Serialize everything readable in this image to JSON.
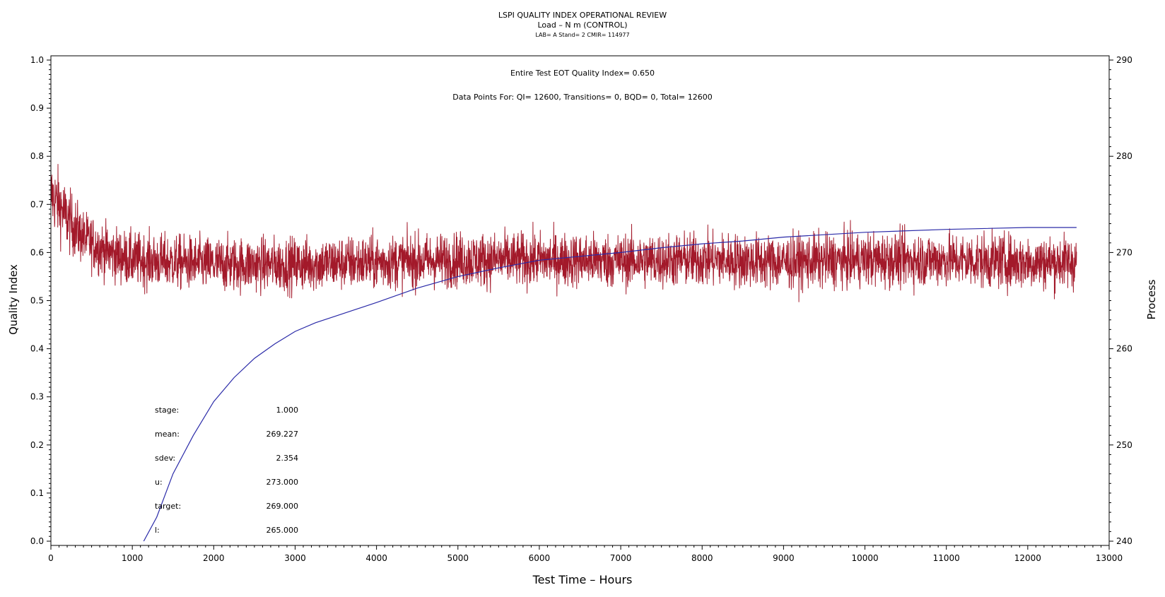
{
  "header": {
    "title": "LSPI QUALITY INDEX OPERATIONAL REVIEW",
    "subtitle": "Load – N m (CONTROL)",
    "meta": "LAB= A Stand= 2 CMIR= 114977"
  },
  "annotations": {
    "eot": "Entire Test EOT Quality Index=   0.650",
    "data_points": "Data Points For: QI= 12600, Transitions=      0, BQD=      0, Total= 12600"
  },
  "stats": [
    {
      "label": "stage:",
      "value": "1.000"
    },
    {
      "label": "mean:",
      "value": "269.227"
    },
    {
      "label": "sdev:",
      "value": "2.354"
    },
    {
      "label": "u:",
      "value": "273.000"
    },
    {
      "label": "target:",
      "value": "269.000"
    },
    {
      "label": "l:",
      "value": "265.000"
    }
  ],
  "colors": {
    "qi_series": "#a3192a",
    "process_series": "#2a2aa8",
    "frame": "#000000"
  },
  "chart_data": {
    "type": "line",
    "xlabel": "Test Time – Hours",
    "ylabel": "Quality Index",
    "y2label": "Process",
    "xlim": [
      0,
      13000
    ],
    "ylim": [
      0.0,
      1.0
    ],
    "y2lim": [
      240,
      290
    ],
    "xticks": [
      "0",
      "1000",
      "2000",
      "3000",
      "4000",
      "5000",
      "6000",
      "7000",
      "8000",
      "9000",
      "10000",
      "11000",
      "12000",
      "13000"
    ],
    "yticks": [
      "0.0",
      "0.1",
      "0.2",
      "0.3",
      "0.4",
      "0.5",
      "0.6",
      "0.7",
      "0.8",
      "0.9",
      "1.0"
    ],
    "y2ticks": [
      "240",
      "250",
      "260",
      "270",
      "280",
      "290"
    ],
    "series": [
      {
        "axis": "left",
        "x": [
          0,
          100,
          200,
          300,
          400,
          500,
          600,
          700,
          800,
          900,
          1000,
          1500,
          2000,
          2500,
          3000,
          3500,
          4000,
          4500,
          5000,
          6000,
          7000,
          8000,
          9000,
          10000,
          11000,
          12000,
          12600
        ],
        "values": [
          0.72,
          0.7,
          0.67,
          0.65,
          0.63,
          0.62,
          0.61,
          0.6,
          0.595,
          0.59,
          0.585,
          0.58,
          0.575,
          0.575,
          0.575,
          0.578,
          0.58,
          0.582,
          0.585,
          0.585,
          0.583,
          0.585,
          0.58,
          0.585,
          0.585,
          0.58,
          0.58
        ],
        "spread": [
          0.07,
          0.07,
          0.065,
          0.06,
          0.055,
          0.055,
          0.055,
          0.055,
          0.055,
          0.055,
          0.055,
          0.055,
          0.055,
          0.055,
          0.055,
          0.055,
          0.055,
          0.055,
          0.055,
          0.055,
          0.055,
          0.055,
          0.055,
          0.055,
          0.055,
          0.055,
          0.055
        ]
      },
      {
        "axis": "right",
        "x": [
          1140,
          1300,
          1500,
          1750,
          2000,
          2250,
          2500,
          2750,
          3000,
          3250,
          3500,
          4000,
          4500,
          5000,
          5500,
          6000,
          6500,
          7000,
          7500,
          8000,
          8500,
          9000,
          10000,
          11000,
          12000,
          12600
        ],
        "values": [
          240.0,
          242.5,
          247.0,
          251.0,
          254.5,
          257.0,
          259.0,
          260.5,
          261.8,
          262.7,
          263.4,
          264.8,
          266.3,
          267.5,
          268.4,
          269.2,
          269.6,
          270.0,
          270.5,
          270.9,
          271.2,
          271.6,
          272.1,
          272.4,
          272.6,
          272.6
        ]
      }
    ]
  }
}
